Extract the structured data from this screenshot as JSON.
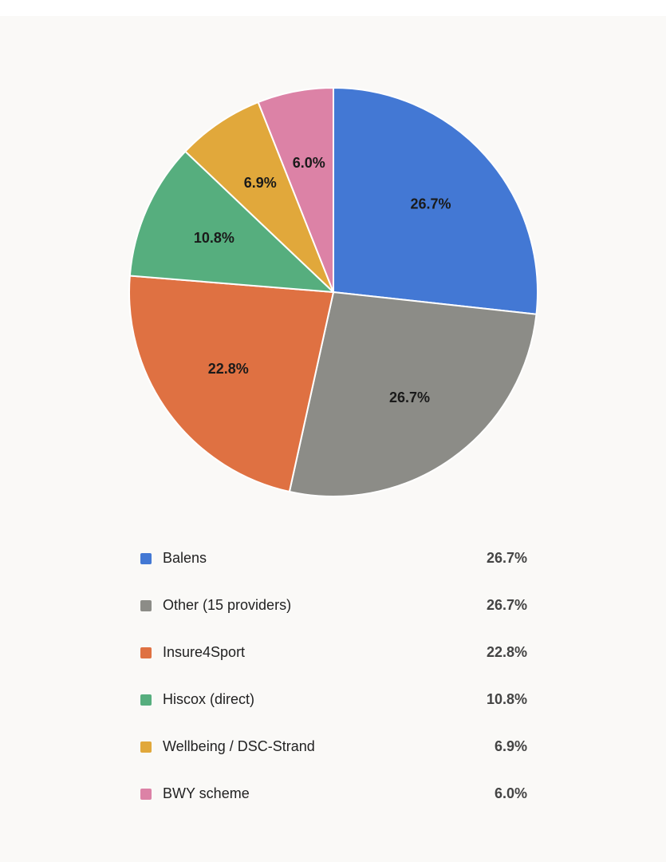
{
  "chart_data": {
    "type": "pie",
    "categories": [
      "Balens",
      "Other (15 providers)",
      "Insure4Sport",
      "Hiscox (direct)",
      "Wellbeing / DSC-Strand",
      "BWY scheme"
    ],
    "values": [
      26.7,
      26.7,
      22.8,
      10.8,
      6.9,
      6.0
    ],
    "value_labels": [
      "26.7%",
      "26.7%",
      "22.8%",
      "10.8%",
      "6.9%",
      "6.0%"
    ],
    "colors": [
      "#4378d4",
      "#8c8c87",
      "#df7142",
      "#56ae7e",
      "#e1a83b",
      "#dc82a6"
    ],
    "legend": "bottom"
  }
}
